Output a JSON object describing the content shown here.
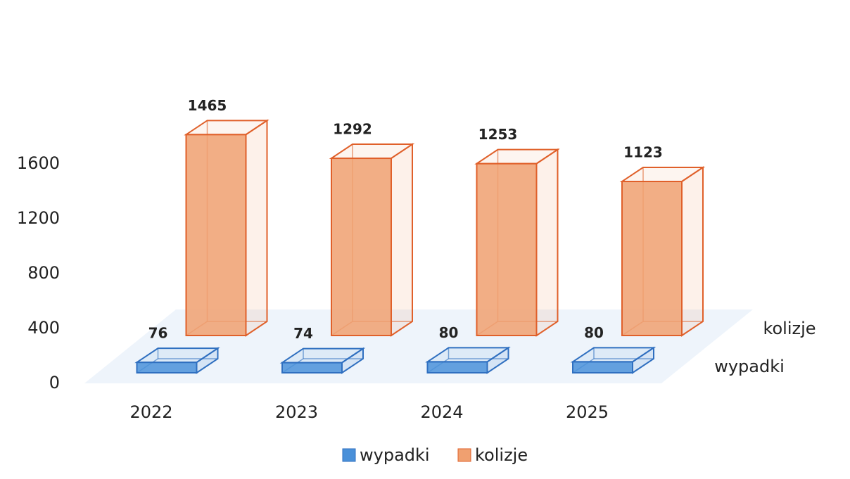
{
  "chart_data": {
    "type": "bar3d",
    "categories": [
      "2022",
      "2023",
      "2024",
      "2025"
    ],
    "series": [
      {
        "name": "wypadki",
        "color": "#4a90d9",
        "values": [
          76,
          74,
          80,
          80
        ]
      },
      {
        "name": "kolizje",
        "color": "#f0a070",
        "values": [
          1465,
          1292,
          1253,
          1123
        ]
      }
    ],
    "ylim": [
      0,
      1600
    ],
    "yticks": [
      0,
      400,
      800,
      1200,
      1600
    ]
  }
}
